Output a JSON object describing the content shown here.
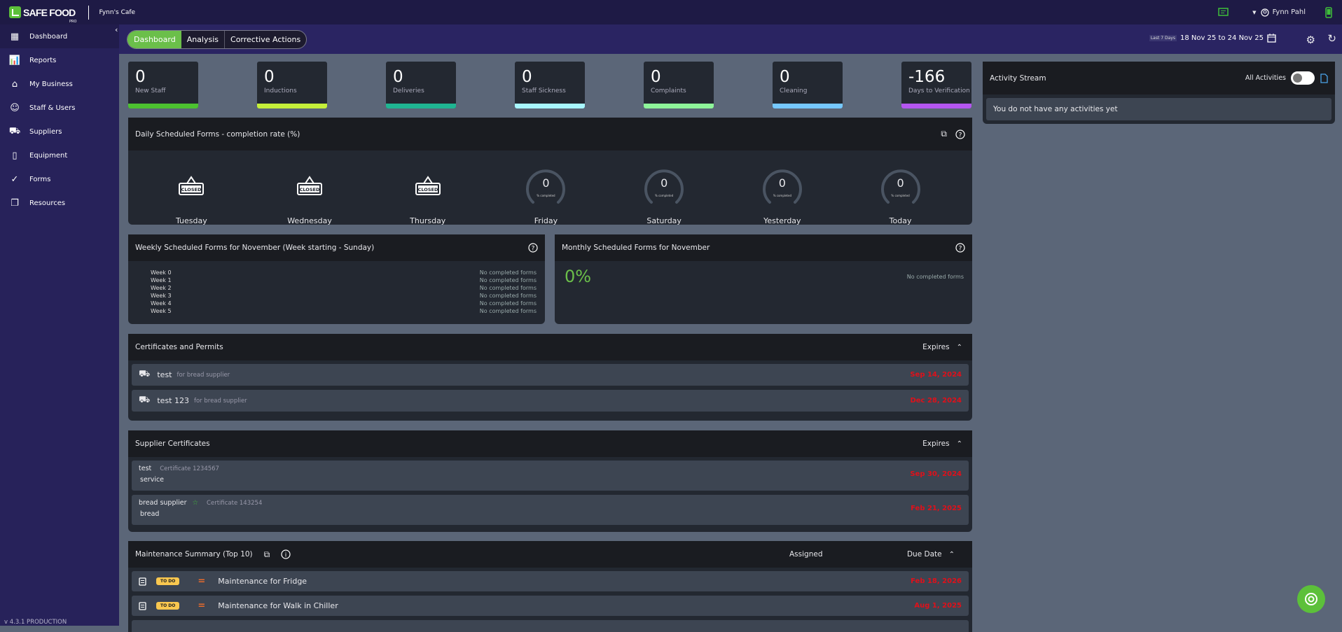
{
  "brand": {
    "name": "SAFE FOOD",
    "sub": "PRO",
    "business": "Fynn's Cafe"
  },
  "user": {
    "name": "Fynn Pahl"
  },
  "sidebar": {
    "items": [
      {
        "label": "Dashboard",
        "icon": "dashboard-icon"
      },
      {
        "label": "Reports",
        "icon": "reports-icon"
      },
      {
        "label": "My Business",
        "icon": "store-icon"
      },
      {
        "label": "Staff & Users",
        "icon": "face-icon"
      },
      {
        "label": "Suppliers",
        "icon": "truck-icon"
      },
      {
        "label": "Equipment",
        "icon": "fridge-icon"
      },
      {
        "label": "Forms",
        "icon": "check-circle-icon"
      },
      {
        "label": "Resources",
        "icon": "copy-icon"
      }
    ],
    "version": "v 4.3.1 PRODUCTION"
  },
  "tabs": [
    {
      "label": "Dashboard",
      "active": true
    },
    {
      "label": "Analysis"
    },
    {
      "label": "Corrective Actions"
    }
  ],
  "daterange": {
    "preset": "Last 7 Days",
    "range": "18 Nov 25 to 24 Nov 25"
  },
  "stats": [
    {
      "value": "0",
      "label": "New Staff",
      "color": "#4cc230"
    },
    {
      "value": "0",
      "label": "Inductions",
      "color": "#c5ef3a"
    },
    {
      "value": "0",
      "label": "Deliveries",
      "color": "#1fb592"
    },
    {
      "value": "0",
      "label": "Staff Sickness",
      "color": "#a8f6ff"
    },
    {
      "value": "0",
      "label": "Complaints",
      "color": "#8ef59a"
    },
    {
      "value": "0",
      "label": "Cleaning",
      "color": "#76c8ff"
    },
    {
      "value": "-166",
      "label": "Days to Verification",
      "color": "#b456f0"
    }
  ],
  "daily": {
    "title": "Daily Scheduled Forms - completion rate (%)",
    "gauge_sub": "% completed",
    "closed_label": "CLOSED",
    "days": [
      {
        "name": "Tuesday",
        "closed": true
      },
      {
        "name": "Wednesday",
        "closed": true
      },
      {
        "name": "Thursday",
        "closed": true
      },
      {
        "name": "Friday",
        "value": "0"
      },
      {
        "name": "Saturday",
        "value": "0"
      },
      {
        "name": "Yesterday",
        "value": "0"
      },
      {
        "name": "Today",
        "value": "0"
      }
    ]
  },
  "weekly": {
    "title": "Weekly Scheduled Forms for November (Week starting - Sunday)",
    "weeks": [
      {
        "name": "Week 0",
        "status": "No completed forms"
      },
      {
        "name": "Week 1",
        "status": "No completed forms"
      },
      {
        "name": "Week 2",
        "status": "No completed forms"
      },
      {
        "name": "Week 3",
        "status": "No completed forms"
      },
      {
        "name": "Week 4",
        "status": "No completed forms"
      },
      {
        "name": "Week 5",
        "status": "No completed forms"
      }
    ]
  },
  "monthly": {
    "title": "Monthly Scheduled Forms for November",
    "percent": "0%",
    "status": "No completed forms"
  },
  "certificates": {
    "title": "Certificates and Permits",
    "sort": "Expires",
    "rows": [
      {
        "name": "test",
        "sub": "for bread supplier",
        "date": "Sep 14, 2024"
      },
      {
        "name": "test 123",
        "sub": "for bread supplier",
        "date": "Dec 28, 2024"
      }
    ]
  },
  "supplier_certs": {
    "title": "Supplier Certificates",
    "sort": "Expires",
    "rows": [
      {
        "name": "test",
        "cert": "Certificate 1234567",
        "type": "service",
        "date": "Sep 30, 2024",
        "starred": false
      },
      {
        "name": "bread supplier",
        "cert": "Certificate 143254",
        "type": "bread",
        "date": "Feb 21, 2025",
        "starred": true
      }
    ]
  },
  "maintenance": {
    "title": "Maintenance Summary (Top 10)",
    "assigned": "Assigned",
    "due": "Due Date",
    "rows": [
      {
        "status": "TO DO",
        "name": "Maintenance for Fridge",
        "date": "Feb 18, 2026"
      },
      {
        "status": "TO DO",
        "name": "Maintenance for Walk in Chiller",
        "date": "Aug 1, 2025"
      }
    ]
  },
  "activity": {
    "title": "Activity Stream",
    "filter": "All Activities",
    "empty": "You do not have any activities yet"
  },
  "colors": {
    "accent": "#6bbf4a",
    "sidebar": "#27225a",
    "overdue": "#e0101a"
  }
}
